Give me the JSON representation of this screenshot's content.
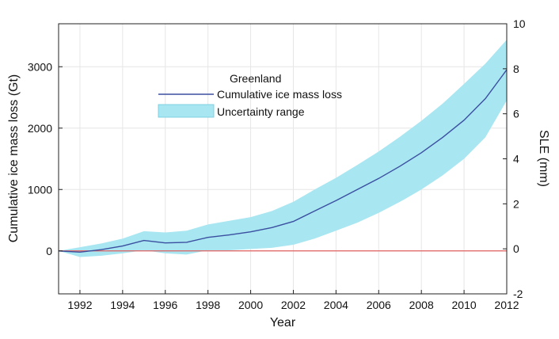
{
  "chart_data": {
    "type": "line",
    "title": "",
    "legend": {
      "title": "Greenland",
      "placement": "top-center",
      "entries": [
        {
          "label": "Cumulative ice mass loss",
          "kind": "line",
          "color": "#3b4fa0"
        },
        {
          "label": "Uncertainty range",
          "kind": "area",
          "color": "#a8e6f1"
        }
      ]
    },
    "xlabel": "Year",
    "ylabel": "Cumulative ice mass loss (Gt)",
    "y2label": "SLE (mm)",
    "xlim": [
      1991,
      2012
    ],
    "ylim": [
      -700,
      3700
    ],
    "y2lim": [
      -2,
      10
    ],
    "xticks": [
      "1992",
      "1994",
      "1996",
      "1998",
      "2000",
      "2002",
      "2004",
      "2006",
      "2008",
      "2010",
      "2012"
    ],
    "yticks": [
      "0",
      "1000",
      "2000",
      "3000"
    ],
    "y2ticks": [
      "-2",
      "0",
      "2",
      "4",
      "6",
      "8",
      "10"
    ],
    "zero_line_color": "#e06060",
    "grid": true,
    "series": [
      {
        "name": "Cumulative ice mass loss",
        "x": [
          1991,
          1992,
          1993,
          1994,
          1995,
          1996,
          1997,
          1998,
          1999,
          2000,
          2001,
          2002,
          2003,
          2004,
          2005,
          2006,
          2007,
          2008,
          2009,
          2010,
          2011,
          2012
        ],
        "y": [
          0,
          -20,
          20,
          80,
          170,
          130,
          140,
          220,
          260,
          310,
          380,
          480,
          650,
          820,
          1000,
          1180,
          1380,
          1600,
          1850,
          2130,
          2480,
          2950
        ],
        "lower": [
          0,
          -100,
          -80,
          -40,
          10,
          -40,
          -60,
          10,
          10,
          30,
          50,
          100,
          200,
          330,
          460,
          620,
          800,
          1000,
          1230,
          1500,
          1850,
          2450
        ],
        "upper": [
          0,
          60,
          120,
          200,
          320,
          300,
          330,
          430,
          490,
          550,
          650,
          800,
          1000,
          1190,
          1400,
          1620,
          1860,
          2120,
          2400,
          2720,
          3050,
          3440
        ]
      }
    ]
  }
}
